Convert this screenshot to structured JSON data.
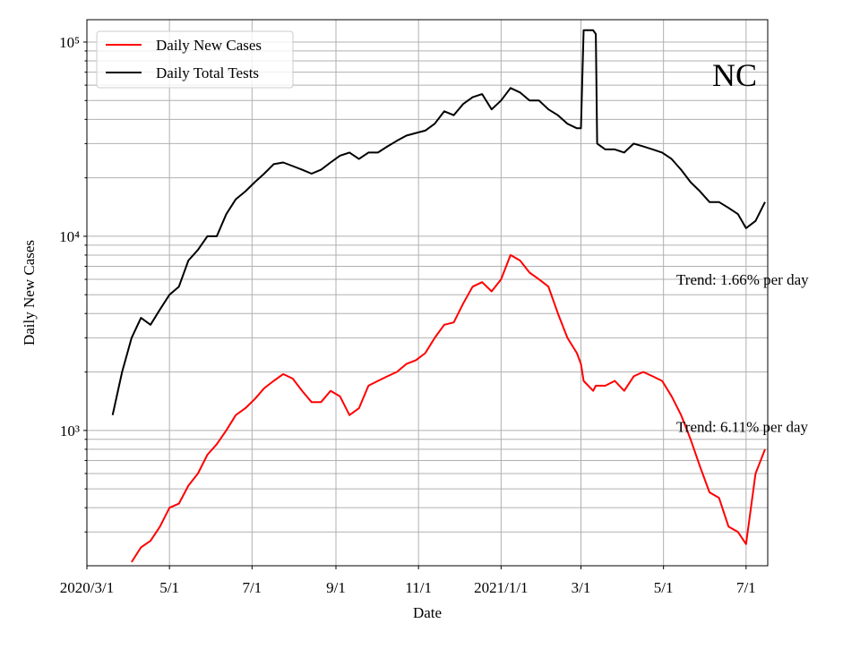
{
  "chart_data": {
    "type": "line",
    "annotation": "NC",
    "xlabel": "Date",
    "ylabel": "Daily New Cases",
    "log_y": true,
    "grid": true,
    "legend": "upper left",
    "xlim": [
      "2020-03-01",
      "2021-07-17"
    ],
    "xticks": [
      {
        "value": "2020-03-01",
        "label": "2020/3/1"
      },
      {
        "value": "2020-05-01",
        "label": "5/1"
      },
      {
        "value": "2020-07-01",
        "label": "7/1"
      },
      {
        "value": "2020-09-01",
        "label": "9/1"
      },
      {
        "value": "2020-11-01",
        "label": "11/1"
      },
      {
        "value": "2021-01-01",
        "label": "2021/1/1"
      },
      {
        "value": "2021-03-01",
        "label": "3/1"
      },
      {
        "value": "2021-05-01",
        "label": "5/1"
      },
      {
        "value": "2021-07-01",
        "label": "7/1"
      }
    ],
    "ylim": [
      201,
      130400
    ],
    "yticks": [
      {
        "value": 1000,
        "label": "10³"
      },
      {
        "value": 10000,
        "label": "10⁴"
      },
      {
        "value": 100000,
        "label": "10⁵"
      }
    ],
    "yminorticks": [
      300,
      400,
      500,
      600,
      700,
      800,
      900,
      2000,
      3000,
      4000,
      5000,
      6000,
      7000,
      8000,
      9000,
      20000,
      30000,
      40000,
      50000,
      60000,
      70000,
      80000,
      90000
    ],
    "trend_labels": [
      {
        "text": "Trend: 1.66% per day",
        "y": 6000
      },
      {
        "text": "Trend: 6.11% per day",
        "y": 1050
      }
    ],
    "x": [
      "2020-03-20",
      "2020-03-27",
      "2020-04-03",
      "2020-04-10",
      "2020-04-17",
      "2020-04-24",
      "2020-05-01",
      "2020-05-08",
      "2020-05-15",
      "2020-05-22",
      "2020-05-29",
      "2020-06-05",
      "2020-06-12",
      "2020-06-19",
      "2020-06-26",
      "2020-07-03",
      "2020-07-10",
      "2020-07-17",
      "2020-07-24",
      "2020-07-31",
      "2020-08-07",
      "2020-08-14",
      "2020-08-21",
      "2020-08-28",
      "2020-09-04",
      "2020-09-11",
      "2020-09-18",
      "2020-09-25",
      "2020-10-02",
      "2020-10-09",
      "2020-10-16",
      "2020-10-23",
      "2020-10-30",
      "2020-11-06",
      "2020-11-13",
      "2020-11-20",
      "2020-11-27",
      "2020-12-04",
      "2020-12-11",
      "2020-12-18",
      "2020-12-25",
      "2021-01-01",
      "2021-01-08",
      "2021-01-15",
      "2021-01-22",
      "2021-01-29",
      "2021-02-05",
      "2021-02-12",
      "2021-02-19",
      "2021-02-26",
      "2021-03-01",
      "2021-03-03",
      "2021-03-10",
      "2021-03-12",
      "2021-03-13",
      "2021-03-19",
      "2021-03-26",
      "2021-04-02",
      "2021-04-09",
      "2021-04-16",
      "2021-04-23",
      "2021-04-30",
      "2021-05-07",
      "2021-05-14",
      "2021-05-21",
      "2021-05-28",
      "2021-06-04",
      "2021-06-11",
      "2021-06-18",
      "2021-06-25",
      "2021-07-01",
      "2021-07-08",
      "2021-07-15"
    ],
    "series": [
      {
        "name": "Daily New Cases",
        "color": "#ff0000",
        "values": [
          null,
          null,
          210,
          250,
          270,
          320,
          400,
          420,
          520,
          600,
          750,
          850,
          1000,
          1200,
          1300,
          1450,
          1650,
          1800,
          1950,
          1850,
          1600,
          1400,
          1400,
          1600,
          1500,
          1200,
          1300,
          1700,
          1800,
          1900,
          2000,
          2200,
          2300,
          2500,
          3000,
          3500,
          3600,
          4500,
          5500,
          5800,
          5200,
          6000,
          8000,
          7500,
          6500,
          6000,
          5500,
          4000,
          3000,
          2500,
          2200,
          1800,
          1600,
          1700,
          1700,
          1700,
          1800,
          1600,
          1900,
          2000,
          1900,
          1800,
          1500,
          1200,
          900,
          650,
          480,
          450,
          320,
          300,
          260,
          600,
          800
        ]
      },
      {
        "name": "Daily Total Tests",
        "color": "#000000",
        "values": [
          1200,
          2000,
          3000,
          3800,
          3500,
          4200,
          5000,
          5500,
          7500,
          8500,
          10000,
          10000,
          13000,
          15500,
          17000,
          19000,
          21000,
          23500,
          24000,
          23000,
          22000,
          21000,
          22000,
          24000,
          26000,
          27000,
          25000,
          27000,
          27000,
          29000,
          31000,
          33000,
          34000,
          35000,
          38000,
          44000,
          42000,
          48000,
          52000,
          54000,
          45000,
          50000,
          58000,
          55000,
          50000,
          50000,
          45000,
          42000,
          38000,
          36000,
          36000,
          115000,
          115000,
          110000,
          30000,
          28000,
          28000,
          27000,
          30000,
          29000,
          28000,
          27000,
          25000,
          22000,
          19000,
          17000,
          15000,
          15000,
          14000,
          13000,
          11000,
          12000,
          15000
        ]
      }
    ]
  }
}
